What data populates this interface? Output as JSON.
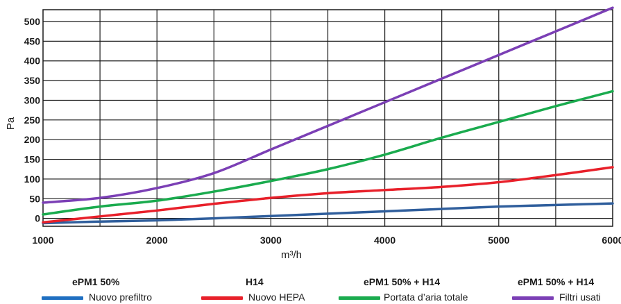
{
  "chart_data": {
    "type": "line",
    "title": "",
    "xlabel": "m³/h",
    "ylabel": "Pa",
    "xlim": [
      1000,
      6000
    ],
    "ylim": [
      -20,
      530
    ],
    "x_ticks": [
      "1000",
      "2000",
      "3000",
      "4000",
      "5000",
      "6000"
    ],
    "y_ticks": [
      "0",
      "50",
      "100",
      "150",
      "200",
      "250",
      "300",
      "350",
      "400",
      "450",
      "500"
    ],
    "grid": true,
    "series": [
      {
        "name": "Nuovo prefiltro",
        "color": "#2f5e9c",
        "x": [
          1000,
          1500,
          2000,
          2500,
          3000,
          3500,
          4000,
          4500,
          5000,
          5500,
          6000
        ],
        "y": [
          -12,
          -8,
          -5,
          0,
          6,
          12,
          18,
          24,
          30,
          34,
          38
        ]
      },
      {
        "name": "Nuovo HEPA",
        "color": "#e8202a",
        "x": [
          1000,
          1500,
          2000,
          2500,
          3000,
          3500,
          4000,
          4500,
          5000,
          5500,
          6000
        ],
        "y": [
          -10,
          5,
          20,
          37,
          52,
          64,
          72,
          80,
          92,
          110,
          130
        ]
      },
      {
        "name": "Portata d'aria totale",
        "color": "#1aab4e",
        "x": [
          1000,
          1500,
          2000,
          2500,
          3000,
          3500,
          4000,
          4500,
          5000,
          5500,
          6000
        ],
        "y": [
          10,
          30,
          45,
          68,
          95,
          125,
          162,
          205,
          245,
          285,
          323
        ]
      },
      {
        "name": "Filtri usati",
        "color": "#7b3fb5",
        "x": [
          1000,
          1500,
          2000,
          2500,
          3000,
          3500,
          4000,
          4500,
          5000,
          5500,
          6000
        ],
        "y": [
          40,
          52,
          77,
          115,
          175,
          235,
          295,
          355,
          415,
          475,
          535
        ]
      }
    ]
  },
  "legend": [
    {
      "group_title": "ePM1 50%",
      "label": "Nuovo prefiltro",
      "color": "#1f6fc1"
    },
    {
      "group_title": "H14",
      "label": "Nuovo HEPA",
      "color": "#e8202a"
    },
    {
      "group_title": "ePM1 50% + H14",
      "label": "Portata d’aria totale",
      "color": "#1aab4e"
    },
    {
      "group_title": "ePM1 50% + H14",
      "label": "Filtri usati",
      "color": "#7b3fb5"
    }
  ]
}
